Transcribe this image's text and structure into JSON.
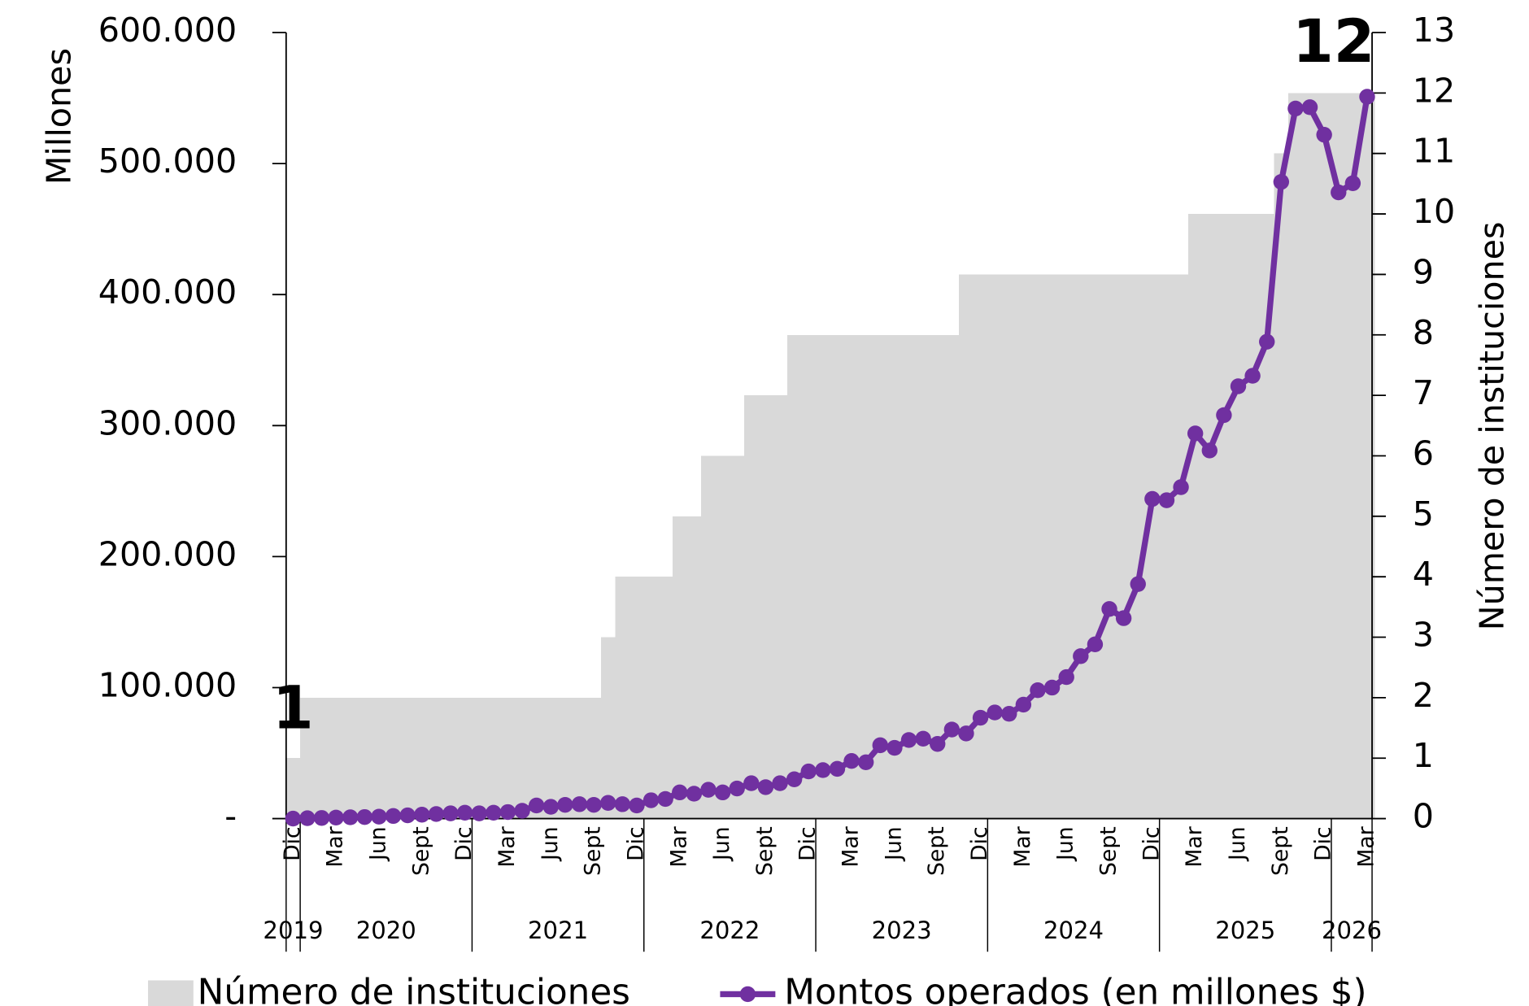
{
  "chart_data": {
    "type": "bar_line",
    "y_label": "Millones",
    "y2_label": "Número de instituciones",
    "categories": [
      "Dic",
      null,
      null,
      "Mar",
      null,
      null,
      "Jun",
      null,
      null,
      "Sept",
      null,
      null,
      "Dic",
      null,
      null,
      "Mar",
      null,
      null,
      "Jun",
      null,
      null,
      "Sept",
      null,
      null,
      "Dic",
      null,
      null,
      "Mar",
      null,
      null,
      "Jun",
      null,
      null,
      "Sept",
      null,
      null,
      "Dic",
      null,
      null,
      "Mar",
      null,
      null,
      "Jun",
      null,
      null,
      "Sept",
      null,
      null,
      "Dic",
      null,
      null,
      "Mar",
      null,
      null,
      "Jun",
      null,
      null,
      "Sept",
      null,
      null,
      "Dic",
      null,
      null,
      "Mar",
      null,
      null,
      "Jun",
      null,
      null,
      "Sept",
      null,
      null,
      "Dic",
      null,
      null,
      "Mar"
    ],
    "years": [
      "2019",
      "2020",
      "2021",
      "2022",
      "2023",
      "2024",
      "2025",
      "2026"
    ],
    "series": [
      {
        "name": "Número de instituciones",
        "type": "bar",
        "axis": "y2",
        "color": "#d9d9d9",
        "values": [
          1,
          2,
          2,
          2,
          2,
          2,
          2,
          2,
          2,
          2,
          2,
          2,
          2,
          2,
          2,
          2,
          2,
          2,
          2,
          2,
          2,
          2,
          3,
          4,
          4,
          4,
          4,
          5,
          5,
          6,
          6,
          6,
          7,
          7,
          7,
          8,
          8,
          8,
          8,
          8,
          8,
          8,
          8,
          8,
          8,
          8,
          8,
          9,
          9,
          9,
          9,
          9,
          9,
          9,
          9,
          9,
          9,
          9,
          9,
          9,
          9,
          9,
          9,
          10,
          10,
          10,
          10,
          10,
          10,
          11,
          12,
          12,
          12,
          12,
          12,
          12
        ]
      },
      {
        "name": "Montos operados (en millones $)",
        "type": "line",
        "color": "#7030a0",
        "values": [
          0,
          300,
          500,
          800,
          1000,
          1200,
          1500,
          2000,
          2500,
          3000,
          3500,
          4000,
          4500,
          4000,
          4500,
          5000,
          6000,
          10000,
          9000,
          10500,
          11000,
          10500,
          12000,
          11000,
          10000,
          14000,
          15000,
          20000,
          19000,
          22000,
          20000,
          23000,
          27000,
          24000,
          27000,
          30000,
          36000,
          37000,
          38000,
          44000,
          43000,
          56000,
          54000,
          60000,
          61000,
          57000,
          68000,
          65000,
          77000,
          81000,
          80000,
          87000,
          98000,
          100000,
          108000,
          124000,
          133000,
          160000,
          153000,
          179000,
          244000,
          243000,
          253000,
          294000,
          281000,
          308000,
          330000,
          338000,
          364000,
          486000,
          542000,
          543000,
          522000,
          478000,
          485000,
          551000
        ]
      }
    ],
    "ylim": [
      0,
      600000
    ],
    "yticks": [
      {
        "value": 0,
        "label": "-"
      },
      {
        "value": 100000,
        "label": "100.000"
      },
      {
        "value": 200000,
        "label": "200.000"
      },
      {
        "value": 300000,
        "label": "300.000"
      },
      {
        "value": 400000,
        "label": "400.000"
      },
      {
        "value": 500000,
        "label": "500.000"
      },
      {
        "value": 600000,
        "label": "600.000"
      }
    ],
    "y2lim": [
      0,
      13
    ],
    "y2ticks": [
      0,
      1,
      2,
      3,
      4,
      5,
      6,
      7,
      8,
      9,
      10,
      11,
      12,
      13
    ],
    "annotations": [
      {
        "text": "1",
        "index": 0
      },
      {
        "text": "12",
        "index": 75
      }
    ],
    "legend": "bottom"
  }
}
